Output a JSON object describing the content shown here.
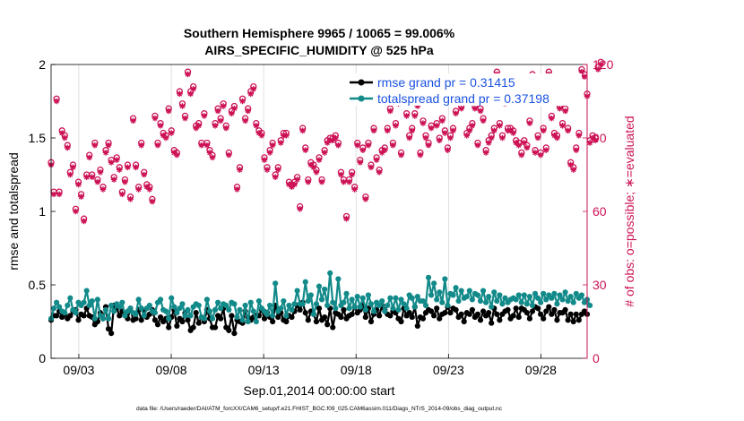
{
  "chart_data": {
    "type": "line",
    "title": "Southern Hemisphere 9965 / 10065 = 99.006%",
    "subtitle": "AIRS_SPECIFIC_HUMIDITY @ 525 hPa",
    "xlabel": "Sep.01,2014 00:00:00 start",
    "ylabel_left": "rmse and totalspread",
    "ylabel_right": "# of obs: o=possible; ∗=evaluated",
    "footer": "data file: /Users/raeder/DAI/ATM_forcXX/CAM6_setup/f.e21.FHIST_BGC.f09_025.CAM6assim.011/Diags_NTrS_2014-09/obs_diag_output.nc",
    "xlim": [
      1.5,
      30.5
    ],
    "ylim_left": [
      0,
      2
    ],
    "ylim_right": [
      0,
      120
    ],
    "x_ticks": [
      3,
      8,
      13,
      18,
      23,
      28
    ],
    "x_tick_labels": [
      "09/03",
      "09/08",
      "09/13",
      "09/18",
      "09/23",
      "09/28"
    ],
    "y_ticks_left": [
      0,
      0.5,
      1,
      1.5,
      2
    ],
    "y_tick_labels_left": [
      "0",
      "0.5",
      "1",
      "1.5",
      "2"
    ],
    "y_ticks_right": [
      0,
      30,
      60,
      90,
      120
    ],
    "y_tick_labels_right": [
      "0",
      "30",
      "60",
      "90",
      "120"
    ],
    "legend": [
      {
        "name": "rmse grand pr = 0.31415",
        "color": "#000000"
      },
      {
        "name": "totalspread grand pr = 0.37198",
        "color": "#138a8a"
      }
    ],
    "colors": {
      "rmse": "#000000",
      "spread": "#138a8a",
      "obs": "#cc1155",
      "axis": "#000000",
      "grid": "#d9d9d9"
    },
    "series": [
      {
        "name": "rmse",
        "axis": "left",
        "values": [
          0.26,
          0.29,
          0.29,
          0.32,
          0.28,
          0.3,
          0.27,
          0.29,
          0.32,
          0.33,
          0.26,
          0.3,
          0.29,
          0.34,
          0.29,
          0.28,
          0.23,
          0.25,
          0.31,
          0.27,
          0.35,
          0.2,
          0.17,
          0.36,
          0.34,
          0.29,
          0.32,
          0.3,
          0.27,
          0.34,
          0.26,
          0.27,
          0.33,
          0.26,
          0.32,
          0.28,
          0.3,
          0.33,
          0.26,
          0.23,
          0.28,
          0.25,
          0.27,
          0.21,
          0.28,
          0.33,
          0.22,
          0.27,
          0.25,
          0.31,
          0.26,
          0.19,
          0.21,
          0.31,
          0.24,
          0.28,
          0.25,
          0.33,
          0.27,
          0.21,
          0.21,
          0.29,
          0.27,
          0.34,
          0.21,
          0.19,
          0.29,
          0.17,
          0.26,
          0.25,
          0.24,
          0.32,
          0.28,
          0.26,
          0.28,
          0.29,
          0.29,
          0.33,
          0.27,
          0.31,
          0.28,
          0.25,
          0.36,
          0.28,
          0.31,
          0.26,
          0.25,
          0.29,
          0.28,
          0.32,
          0.36,
          0.33,
          0.38,
          0.31,
          0.26,
          0.32,
          0.3,
          0.25,
          0.34,
          0.26,
          0.28,
          0.23,
          0.34,
          0.21,
          0.31,
          0.3,
          0.28,
          0.33,
          0.27,
          0.29,
          0.3,
          0.35,
          0.31,
          0.33,
          0.36,
          0.28,
          0.34,
          0.25,
          0.3,
          0.33,
          0.29,
          0.36,
          0.33,
          0.3,
          0.29,
          0.32,
          0.31,
          0.27,
          0.25,
          0.34,
          0.29,
          0.31,
          0.28,
          0.35,
          0.22,
          0.28,
          0.27,
          0.31,
          0.33,
          0.32,
          0.29,
          0.34,
          0.27,
          0.3,
          0.31,
          0.35,
          0.31,
          0.34,
          0.33,
          0.28,
          0.3,
          0.25,
          0.31,
          0.3,
          0.33,
          0.28,
          0.3,
          0.26,
          0.32,
          0.29,
          0.31,
          0.24,
          0.34,
          0.3,
          0.26,
          0.3,
          0.32,
          0.33,
          0.27,
          0.29,
          0.34,
          0.28,
          0.34,
          0.33,
          0.31,
          0.27,
          0.32,
          0.35,
          0.34,
          0.3,
          0.27,
          0.32,
          0.35,
          0.3,
          0.33,
          0.26,
          0.31,
          0.31,
          0.33,
          0.26,
          0.3,
          0.25,
          0.3,
          0.26,
          0.3,
          0.32,
          0.3
        ]
      },
      {
        "name": "totalspread",
        "axis": "left",
        "values": [
          0.27,
          0.34,
          0.38,
          0.35,
          0.32,
          0.31,
          0.36,
          0.41,
          0.33,
          0.31,
          0.38,
          0.36,
          0.38,
          0.46,
          0.36,
          0.39,
          0.27,
          0.4,
          0.29,
          0.27,
          0.33,
          0.27,
          0.36,
          0.32,
          0.37,
          0.35,
          0.38,
          0.29,
          0.32,
          0.34,
          0.31,
          0.3,
          0.4,
          0.34,
          0.29,
          0.34,
          0.36,
          0.32,
          0.31,
          0.38,
          0.4,
          0.33,
          0.32,
          0.27,
          0.41,
          0.35,
          0.31,
          0.34,
          0.37,
          0.29,
          0.33,
          0.29,
          0.35,
          0.37,
          0.36,
          0.28,
          0.27,
          0.4,
          0.32,
          0.27,
          0.33,
          0.38,
          0.34,
          0.37,
          0.36,
          0.33,
          0.38,
          0.37,
          0.28,
          0.33,
          0.26,
          0.36,
          0.25,
          0.38,
          0.32,
          0.25,
          0.39,
          0.34,
          0.32,
          0.3,
          0.36,
          0.29,
          0.51,
          0.32,
          0.34,
          0.39,
          0.29,
          0.36,
          0.33,
          0.37,
          0.46,
          0.37,
          0.37,
          0.52,
          0.39,
          0.43,
          0.3,
          0.37,
          0.49,
          0.4,
          0.47,
          0.36,
          0.58,
          0.38,
          0.34,
          0.54,
          0.36,
          0.38,
          0.44,
          0.34,
          0.4,
          0.35,
          0.42,
          0.35,
          0.41,
          0.33,
          0.43,
          0.37,
          0.32,
          0.38,
          0.36,
          0.39,
          0.32,
          0.36,
          0.41,
          0.34,
          0.41,
          0.33,
          0.4,
          0.37,
          0.34,
          0.43,
          0.41,
          0.35,
          0.42,
          0.39,
          0.39,
          0.36,
          0.55,
          0.43,
          0.51,
          0.4,
          0.45,
          0.38,
          0.54,
          0.36,
          0.44,
          0.43,
          0.48,
          0.39,
          0.46,
          0.41,
          0.42,
          0.46,
          0.4,
          0.44,
          0.43,
          0.39,
          0.46,
          0.38,
          0.42,
          0.35,
          0.45,
          0.39,
          0.43,
          0.37,
          0.41,
          0.38,
          0.4,
          0.41,
          0.4,
          0.43,
          0.38,
          0.43,
          0.37,
          0.42,
          0.36,
          0.44,
          0.41,
          0.38,
          0.44,
          0.4,
          0.43,
          0.41,
          0.44,
          0.37,
          0.43,
          0.4,
          0.45,
          0.39,
          0.42,
          0.38,
          0.44,
          0.41,
          0.43,
          0.38,
          0.4,
          0.36
        ]
      },
      {
        "name": "obs_possible",
        "axis": "right",
        "marker": "o",
        "values": [
          80,
          68,
          106,
          68,
          93,
          91,
          87,
          76,
          79,
          61,
          72,
          67,
          57,
          75,
          83,
          75,
          88,
          73,
          77,
          70,
          85,
          88,
          81,
          74,
          82,
          78,
          68,
          73,
          79,
          66,
          98,
          79,
          70,
          88,
          76,
          71,
          70,
          65,
          99,
          88,
          96,
          92,
          91,
          102,
          93,
          85,
          84,
          109,
          104,
          99,
          117,
          109,
          111,
          95,
          96,
          88,
          100,
          88,
          85,
          83,
          96,
          102,
          98,
          104,
          95,
          84,
          101,
          103,
          70,
          78,
          106,
          98,
          102,
          109,
          111,
          96,
          93,
          92,
          82,
          78,
          85,
          88,
          75,
          78,
          89,
          92,
          92,
          72,
          71,
          72,
          74,
          62,
          94,
          86,
          73,
          80,
          79,
          77,
          82,
          73,
          85,
          89,
          90,
          90,
          91,
          88,
          76,
          73,
          58,
          73,
          76,
          70,
          88,
          81,
          86,
          66,
          88,
          79,
          94,
          82,
          77,
          85,
          86,
          94,
          102,
          88,
          96,
          105,
          84,
          110,
          100,
          91,
          94,
          100,
          104,
          84,
          97,
          91,
          88,
          95,
          108,
          96,
          90,
          98,
          93,
          86,
          91,
          94,
          101,
          112,
          103,
          106,
          92,
          94,
          96,
          103,
          88,
          102,
          98,
          85,
          89,
          91,
          94,
          117,
          96,
          91,
          105,
          94,
          94,
          93,
          89,
          88,
          84,
          89,
          87,
          97,
          116,
          85,
          91,
          84,
          94,
          86,
          117,
          99,
          92,
          91,
          103,
          96,
          102,
          94,
          80,
          78,
          86,
          92,
          118,
          116,
          108,
          89,
          91,
          90,
          119,
          121
        ]
      },
      {
        "name": "obs_evaluated",
        "axis": "right",
        "marker": "*",
        "values": [
          79,
          67,
          105,
          67,
          92,
          90,
          86,
          75,
          78,
          60,
          71,
          66,
          56,
          74,
          82,
          74,
          87,
          72,
          76,
          69,
          84,
          87,
          80,
          73,
          81,
          77,
          67,
          72,
          78,
          65,
          97,
          78,
          69,
          87,
          75,
          70,
          69,
          64,
          98,
          87,
          95,
          91,
          90,
          101,
          92,
          84,
          83,
          108,
          103,
          98,
          116,
          108,
          110,
          94,
          95,
          87,
          99,
          87,
          84,
          82,
          95,
          101,
          97,
          103,
          94,
          83,
          100,
          102,
          69,
          77,
          105,
          97,
          101,
          108,
          110,
          95,
          92,
          91,
          81,
          77,
          84,
          87,
          74,
          77,
          88,
          91,
          91,
          71,
          70,
          71,
          73,
          61,
          93,
          85,
          72,
          79,
          78,
          76,
          81,
          72,
          84,
          88,
          89,
          89,
          90,
          87,
          75,
          72,
          57,
          72,
          75,
          69,
          87,
          80,
          85,
          65,
          87,
          78,
          93,
          81,
          76,
          84,
          85,
          93,
          101,
          87,
          95,
          104,
          83,
          109,
          99,
          90,
          93,
          99,
          103,
          83,
          96,
          90,
          87,
          94,
          107,
          95,
          89,
          97,
          92,
          85,
          90,
          93,
          100,
          111,
          102,
          105,
          91,
          93,
          95,
          102,
          87,
          101,
          97,
          84,
          88,
          90,
          93,
          116,
          95,
          90,
          104,
          93,
          93,
          92,
          88,
          87,
          83,
          88,
          86,
          96,
          115,
          84,
          90,
          83,
          93,
          85,
          116,
          98,
          91,
          90,
          102,
          95,
          101,
          93,
          79,
          77,
          85,
          91,
          117,
          115,
          107,
          88,
          90,
          89,
          118,
          120
        ]
      }
    ]
  }
}
